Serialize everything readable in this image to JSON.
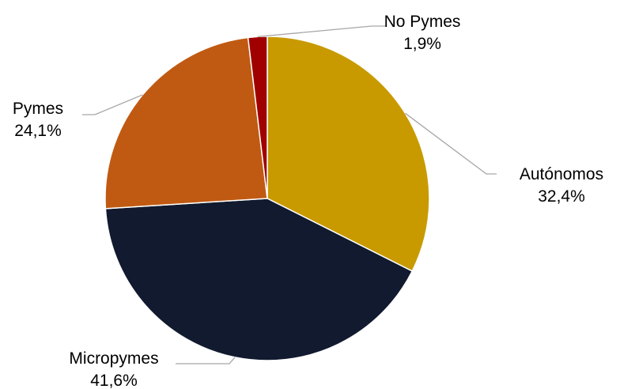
{
  "chart_data": {
    "type": "pie",
    "title": "",
    "start_angle_deg": 0,
    "direction": "clockwise",
    "slices": [
      {
        "name": "Autónomos",
        "value": 32.4,
        "label": "32,4%",
        "color": "#c89a00"
      },
      {
        "name": "Micropymes",
        "value": 41.6,
        "label": "41,6%",
        "color": "#111a2e"
      },
      {
        "name": "Pymes",
        "value": 24.1,
        "label": "24,1%",
        "color": "#c05a12"
      },
      {
        "name": "No Pymes",
        "value": 1.9,
        "label": "1,9%",
        "color": "#a00000"
      }
    ],
    "legend": "none",
    "labels": "outside-with-leader-lines"
  }
}
